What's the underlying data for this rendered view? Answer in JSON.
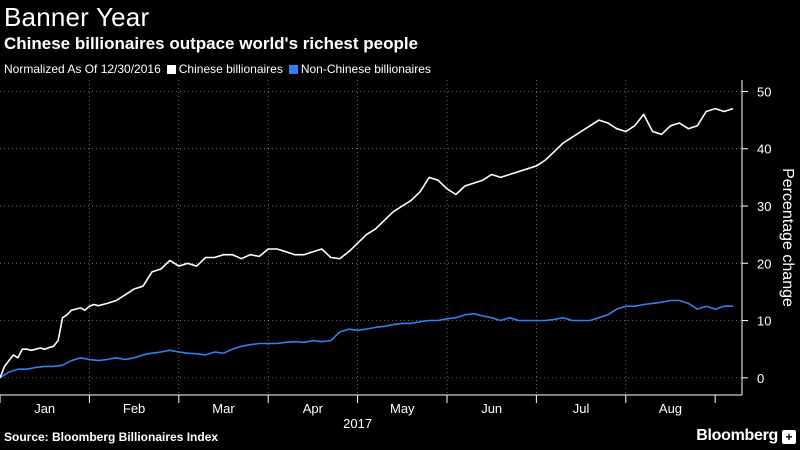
{
  "header": {
    "title": "Banner Year",
    "subtitle": "Chinese billionaires outpace world's richest people"
  },
  "legend": {
    "note": "Normalized As Of 12/30/2016",
    "items": [
      {
        "label": "Chinese billionaires",
        "color": "#ffffff"
      },
      {
        "label": "Non-Chinese billionaires",
        "color": "#2f7ff5"
      }
    ]
  },
  "footer": {
    "source": "Source: Bloomberg Billionaires Index",
    "logo": "Bloomberg"
  },
  "chart_data": {
    "type": "line",
    "title": "Banner Year",
    "subtitle": "Chinese billionaires outpace world's richest people",
    "xlabel": "2017",
    "ylabel": "Percentage change",
    "ylim": [
      -3,
      52
    ],
    "yticks": [
      0,
      10,
      20,
      30,
      40,
      50
    ],
    "xlim": [
      0,
      8.3
    ],
    "month_ticks": [
      "Jan",
      "Feb",
      "Mar",
      "Apr",
      "May",
      "Jun",
      "Jul",
      "Aug"
    ],
    "grid": true,
    "series": [
      {
        "name": "Chinese billionaires",
        "color": "#ffffff",
        "x": [
          0.0,
          0.05,
          0.1,
          0.15,
          0.2,
          0.25,
          0.3,
          0.35,
          0.4,
          0.45,
          0.5,
          0.55,
          0.6,
          0.65,
          0.7,
          0.75,
          0.8,
          0.85,
          0.9,
          0.95,
          1.0,
          1.05,
          1.1,
          1.15,
          1.2,
          1.3,
          1.4,
          1.5,
          1.6,
          1.7,
          1.8,
          1.9,
          2.0,
          2.1,
          2.2,
          2.3,
          2.4,
          2.5,
          2.6,
          2.7,
          2.8,
          2.9,
          3.0,
          3.1,
          3.2,
          3.3,
          3.4,
          3.5,
          3.6,
          3.7,
          3.8,
          3.9,
          4.0,
          4.1,
          4.2,
          4.3,
          4.4,
          4.5,
          4.6,
          4.7,
          4.8,
          4.9,
          5.0,
          5.1,
          5.2,
          5.3,
          5.4,
          5.5,
          5.6,
          5.7,
          5.8,
          5.9,
          6.0,
          6.1,
          6.2,
          6.3,
          6.4,
          6.5,
          6.6,
          6.7,
          6.8,
          6.9,
          7.0,
          7.1,
          7.2,
          7.3,
          7.4,
          7.5,
          7.6,
          7.7,
          7.8,
          7.9,
          8.0,
          8.1,
          8.2
        ],
        "values": [
          0.0,
          2.0,
          3.0,
          4.0,
          3.5,
          5.0,
          5.0,
          4.8,
          5.0,
          5.2,
          5.0,
          5.3,
          5.5,
          6.5,
          10.5,
          11.0,
          11.8,
          12.0,
          12.2,
          11.8,
          12.5,
          12.8,
          12.6,
          12.8,
          13.0,
          13.5,
          14.5,
          15.5,
          16.0,
          18.5,
          19.0,
          20.5,
          19.5,
          20.0,
          19.5,
          21.0,
          21.0,
          21.5,
          21.5,
          20.8,
          21.5,
          21.2,
          22.5,
          22.5,
          22.0,
          21.5,
          21.5,
          22.0,
          22.5,
          21.0,
          20.8,
          22.0,
          23.5,
          25.0,
          26.0,
          27.5,
          29.0,
          30.0,
          31.0,
          32.5,
          35.0,
          34.5,
          33.0,
          32.0,
          33.5,
          34.0,
          34.5,
          35.5,
          35.0,
          35.5,
          36.0,
          36.5,
          37.0,
          38.0,
          39.5,
          41.0,
          42.0,
          43.0,
          44.0,
          45.0,
          44.5,
          43.5,
          43.0,
          44.0,
          46.0,
          43.0,
          42.5,
          44.0,
          44.5,
          43.5,
          44.0,
          46.5,
          47.0,
          46.5,
          47.0
        ]
      },
      {
        "name": "Non-Chinese billionaires",
        "color": "#2f7ff5",
        "x": [
          0.0,
          0.1,
          0.2,
          0.3,
          0.4,
          0.5,
          0.6,
          0.7,
          0.8,
          0.9,
          1.0,
          1.1,
          1.2,
          1.3,
          1.4,
          1.5,
          1.6,
          1.7,
          1.8,
          1.9,
          2.0,
          2.1,
          2.2,
          2.3,
          2.4,
          2.5,
          2.6,
          2.7,
          2.8,
          2.9,
          3.0,
          3.1,
          3.2,
          3.3,
          3.4,
          3.5,
          3.6,
          3.7,
          3.8,
          3.9,
          4.0,
          4.1,
          4.2,
          4.3,
          4.4,
          4.5,
          4.6,
          4.7,
          4.8,
          4.9,
          5.0,
          5.1,
          5.2,
          5.3,
          5.4,
          5.5,
          5.6,
          5.7,
          5.8,
          5.9,
          6.0,
          6.1,
          6.2,
          6.3,
          6.4,
          6.5,
          6.6,
          6.7,
          6.8,
          6.9,
          7.0,
          7.1,
          7.2,
          7.3,
          7.4,
          7.5,
          7.6,
          7.7,
          7.8,
          7.9,
          8.0,
          8.1,
          8.2
        ],
        "values": [
          0.0,
          1.0,
          1.5,
          1.5,
          1.8,
          2.0,
          2.0,
          2.2,
          3.0,
          3.5,
          3.2,
          3.0,
          3.2,
          3.5,
          3.2,
          3.5,
          4.0,
          4.3,
          4.5,
          4.8,
          4.5,
          4.3,
          4.2,
          4.0,
          4.5,
          4.3,
          5.0,
          5.5,
          5.8,
          6.0,
          6.0,
          6.0,
          6.2,
          6.3,
          6.2,
          6.5,
          6.3,
          6.5,
          8.0,
          8.5,
          8.3,
          8.5,
          8.8,
          9.0,
          9.3,
          9.5,
          9.5,
          9.8,
          10.0,
          10.0,
          10.3,
          10.5,
          11.0,
          11.2,
          10.8,
          10.5,
          10.0,
          10.5,
          10.0,
          10.0,
          10.0,
          10.0,
          10.2,
          10.5,
          10.0,
          10.0,
          10.0,
          10.5,
          11.0,
          12.0,
          12.5,
          12.5,
          12.8,
          13.0,
          13.2,
          13.5,
          13.5,
          13.0,
          12.0,
          12.5,
          12.0,
          12.5,
          12.5
        ]
      }
    ]
  }
}
